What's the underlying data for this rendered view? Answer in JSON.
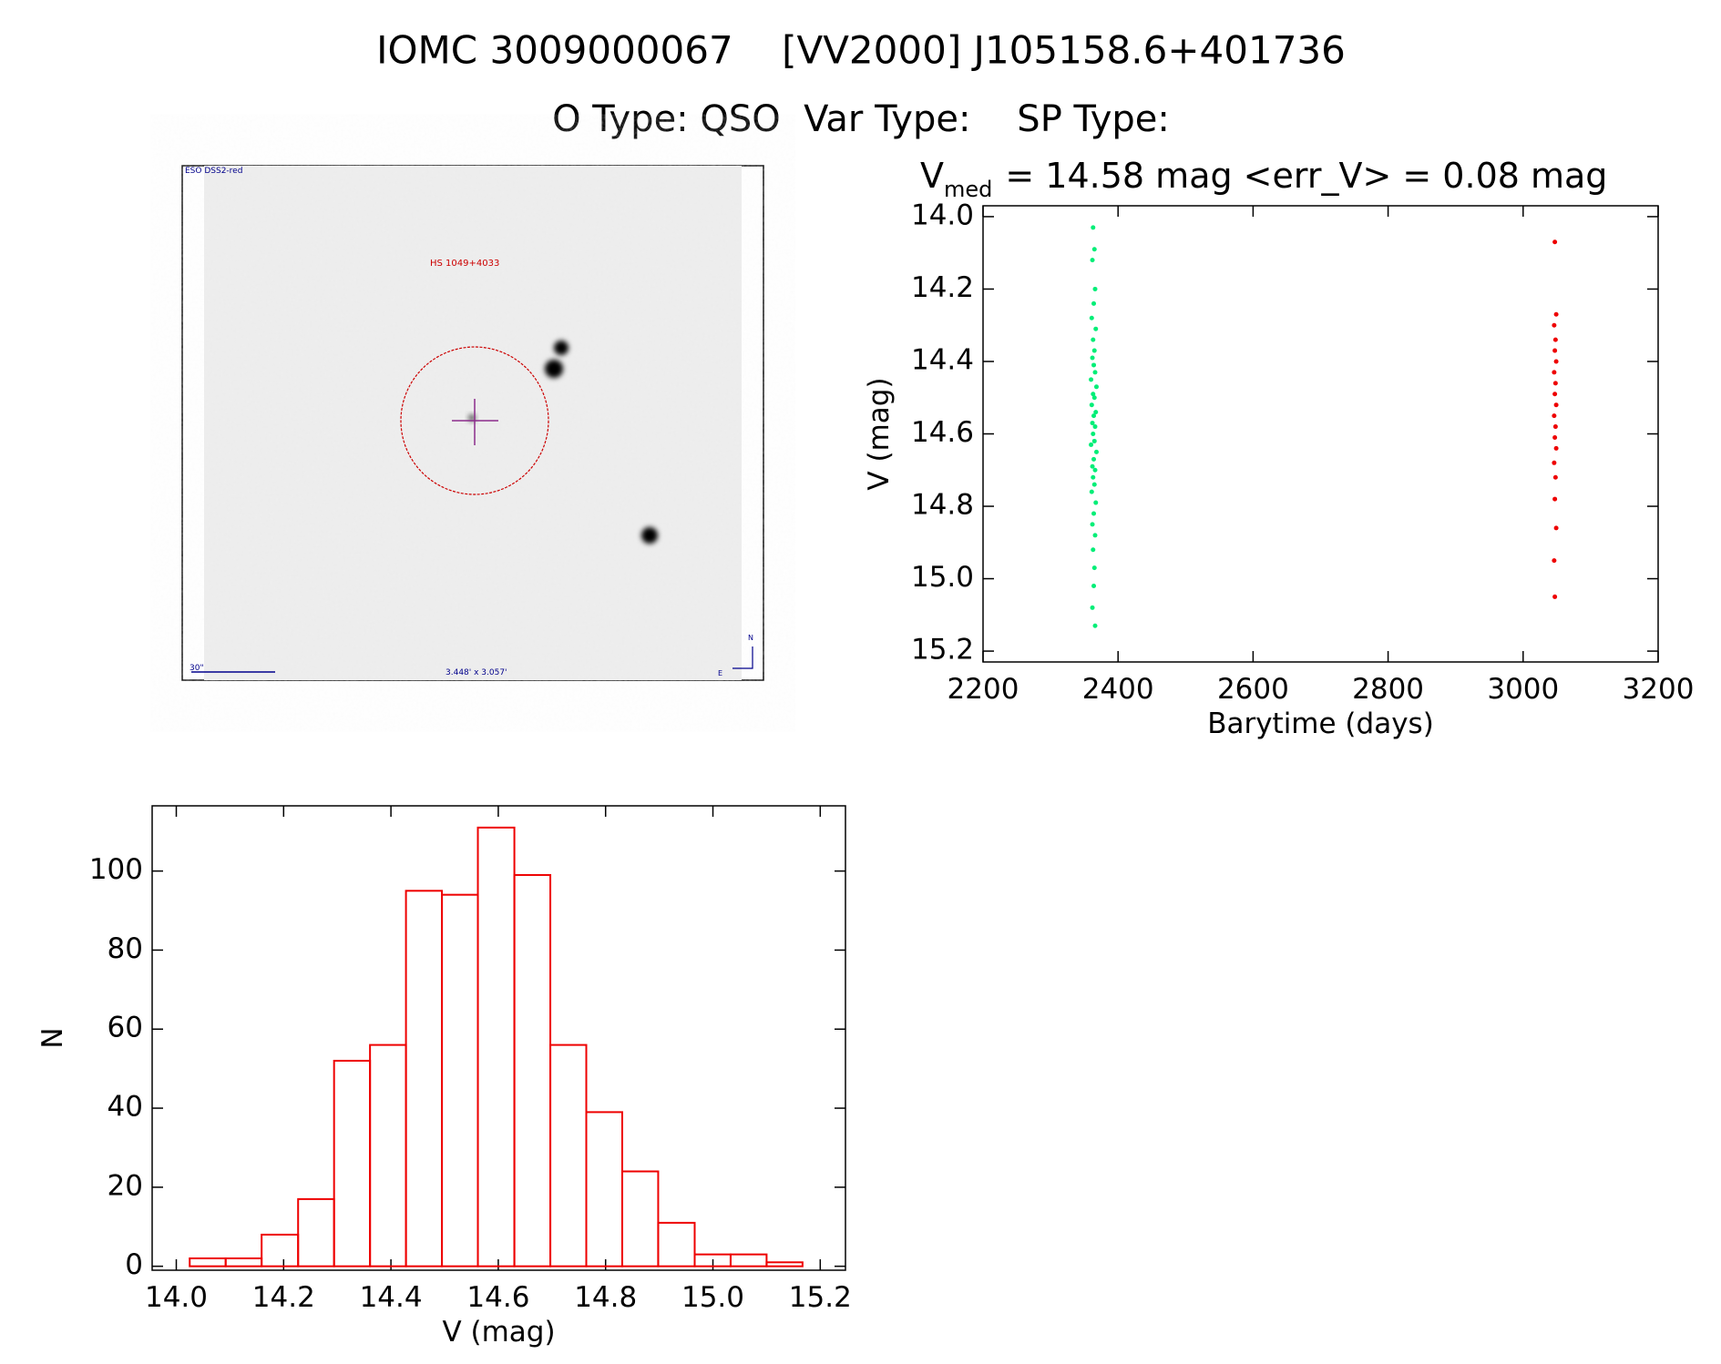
{
  "header": {
    "title": "IOMC 3009000067    [VV2000] J105158.6+401736",
    "subtitle": "O Type: QSO  Var Type:    SP Type:"
  },
  "image": {
    "survey": "ESO DSS2-red",
    "object": "HS 1049+4033",
    "scale": "30\"",
    "size": "3.448' x 3.057'",
    "north": "N",
    "east": "E"
  },
  "chart_data": [
    {
      "type": "scatter",
      "title": "V",
      "title_subscript": "med",
      "title_rest": "= 14.58 mag <err_V> = 0.08 mag",
      "xlabel": "Barytime (days)",
      "ylabel": "V (mag)",
      "xlim": [
        2200,
        3200
      ],
      "xticks": [
        2200,
        2400,
        2600,
        2800,
        3000,
        3200
      ],
      "ylim": [
        15.23,
        13.97
      ],
      "yticks": [
        {
          "value": 14,
          "label": "14.0"
        },
        14.2,
        14.4,
        14.6,
        14.8,
        {
          "value": 15,
          "label": "15.0"
        },
        15.2
      ],
      "series": [
        {
          "color": "#00ee77",
          "x": [
            2363,
            2365,
            2362,
            2366,
            2364,
            2361,
            2367,
            2363,
            2365,
            2362,
            2364,
            2366,
            2360,
            2368,
            2363,
            2365,
            2361,
            2367,
            2364,
            2362,
            2366,
            2363,
            2365,
            2360,
            2368,
            2364,
            2362,
            2366,
            2363,
            2365,
            2361,
            2367,
            2364,
            2362,
            2366,
            2363,
            2365,
            2364,
            2362,
            2366
          ],
          "values": [
            14.03,
            14.09,
            14.12,
            14.2,
            14.24,
            14.28,
            14.31,
            14.34,
            14.37,
            14.39,
            14.41,
            14.43,
            14.45,
            14.47,
            14.49,
            14.5,
            14.52,
            14.54,
            14.55,
            14.57,
            14.58,
            14.6,
            14.62,
            14.63,
            14.65,
            14.67,
            14.69,
            14.7,
            14.72,
            14.74,
            14.76,
            14.79,
            14.82,
            14.85,
            14.88,
            14.92,
            14.97,
            15.02,
            15.08,
            15.13
          ]
        },
        {
          "color": "#ee0000",
          "x": [
            3047,
            3049,
            3046,
            3048,
            3047,
            3049,
            3046,
            3048,
            3047,
            3049,
            3046,
            3048,
            3047,
            3049,
            3046,
            3048,
            3047,
            3049,
            3046,
            3047
          ],
          "values": [
            14.07,
            14.27,
            14.3,
            14.34,
            14.37,
            14.4,
            14.43,
            14.46,
            14.49,
            14.52,
            14.55,
            14.58,
            14.61,
            14.64,
            14.68,
            14.72,
            14.78,
            14.86,
            14.95,
            15.05
          ]
        }
      ]
    },
    {
      "type": "histogram",
      "xlabel": "V (mag)",
      "ylabel": "N",
      "color": "#ee0000",
      "bins": [
        14.025,
        14.092,
        14.159,
        14.227,
        14.294,
        14.361,
        14.428,
        14.495,
        14.562,
        14.63,
        14.697,
        14.764,
        14.831,
        14.898,
        14.966,
        15.033,
        15.1,
        15.167
      ],
      "values": [
        2,
        2,
        8,
        17,
        52,
        56,
        95,
        94,
        111,
        99,
        56,
        39,
        24,
        11,
        3,
        3,
        1
      ],
      "xlim": [
        13.955,
        15.247
      ],
      "xticks": [
        {
          "value": 14,
          "label": "14.0"
        },
        14.2,
        14.4,
        14.6,
        14.8,
        {
          "value": 15,
          "label": "15.0"
        },
        15.2
      ],
      "ylim": [
        -1,
        116.5
      ],
      "yticks": [
        0,
        20,
        40,
        60,
        80,
        100
      ]
    }
  ]
}
